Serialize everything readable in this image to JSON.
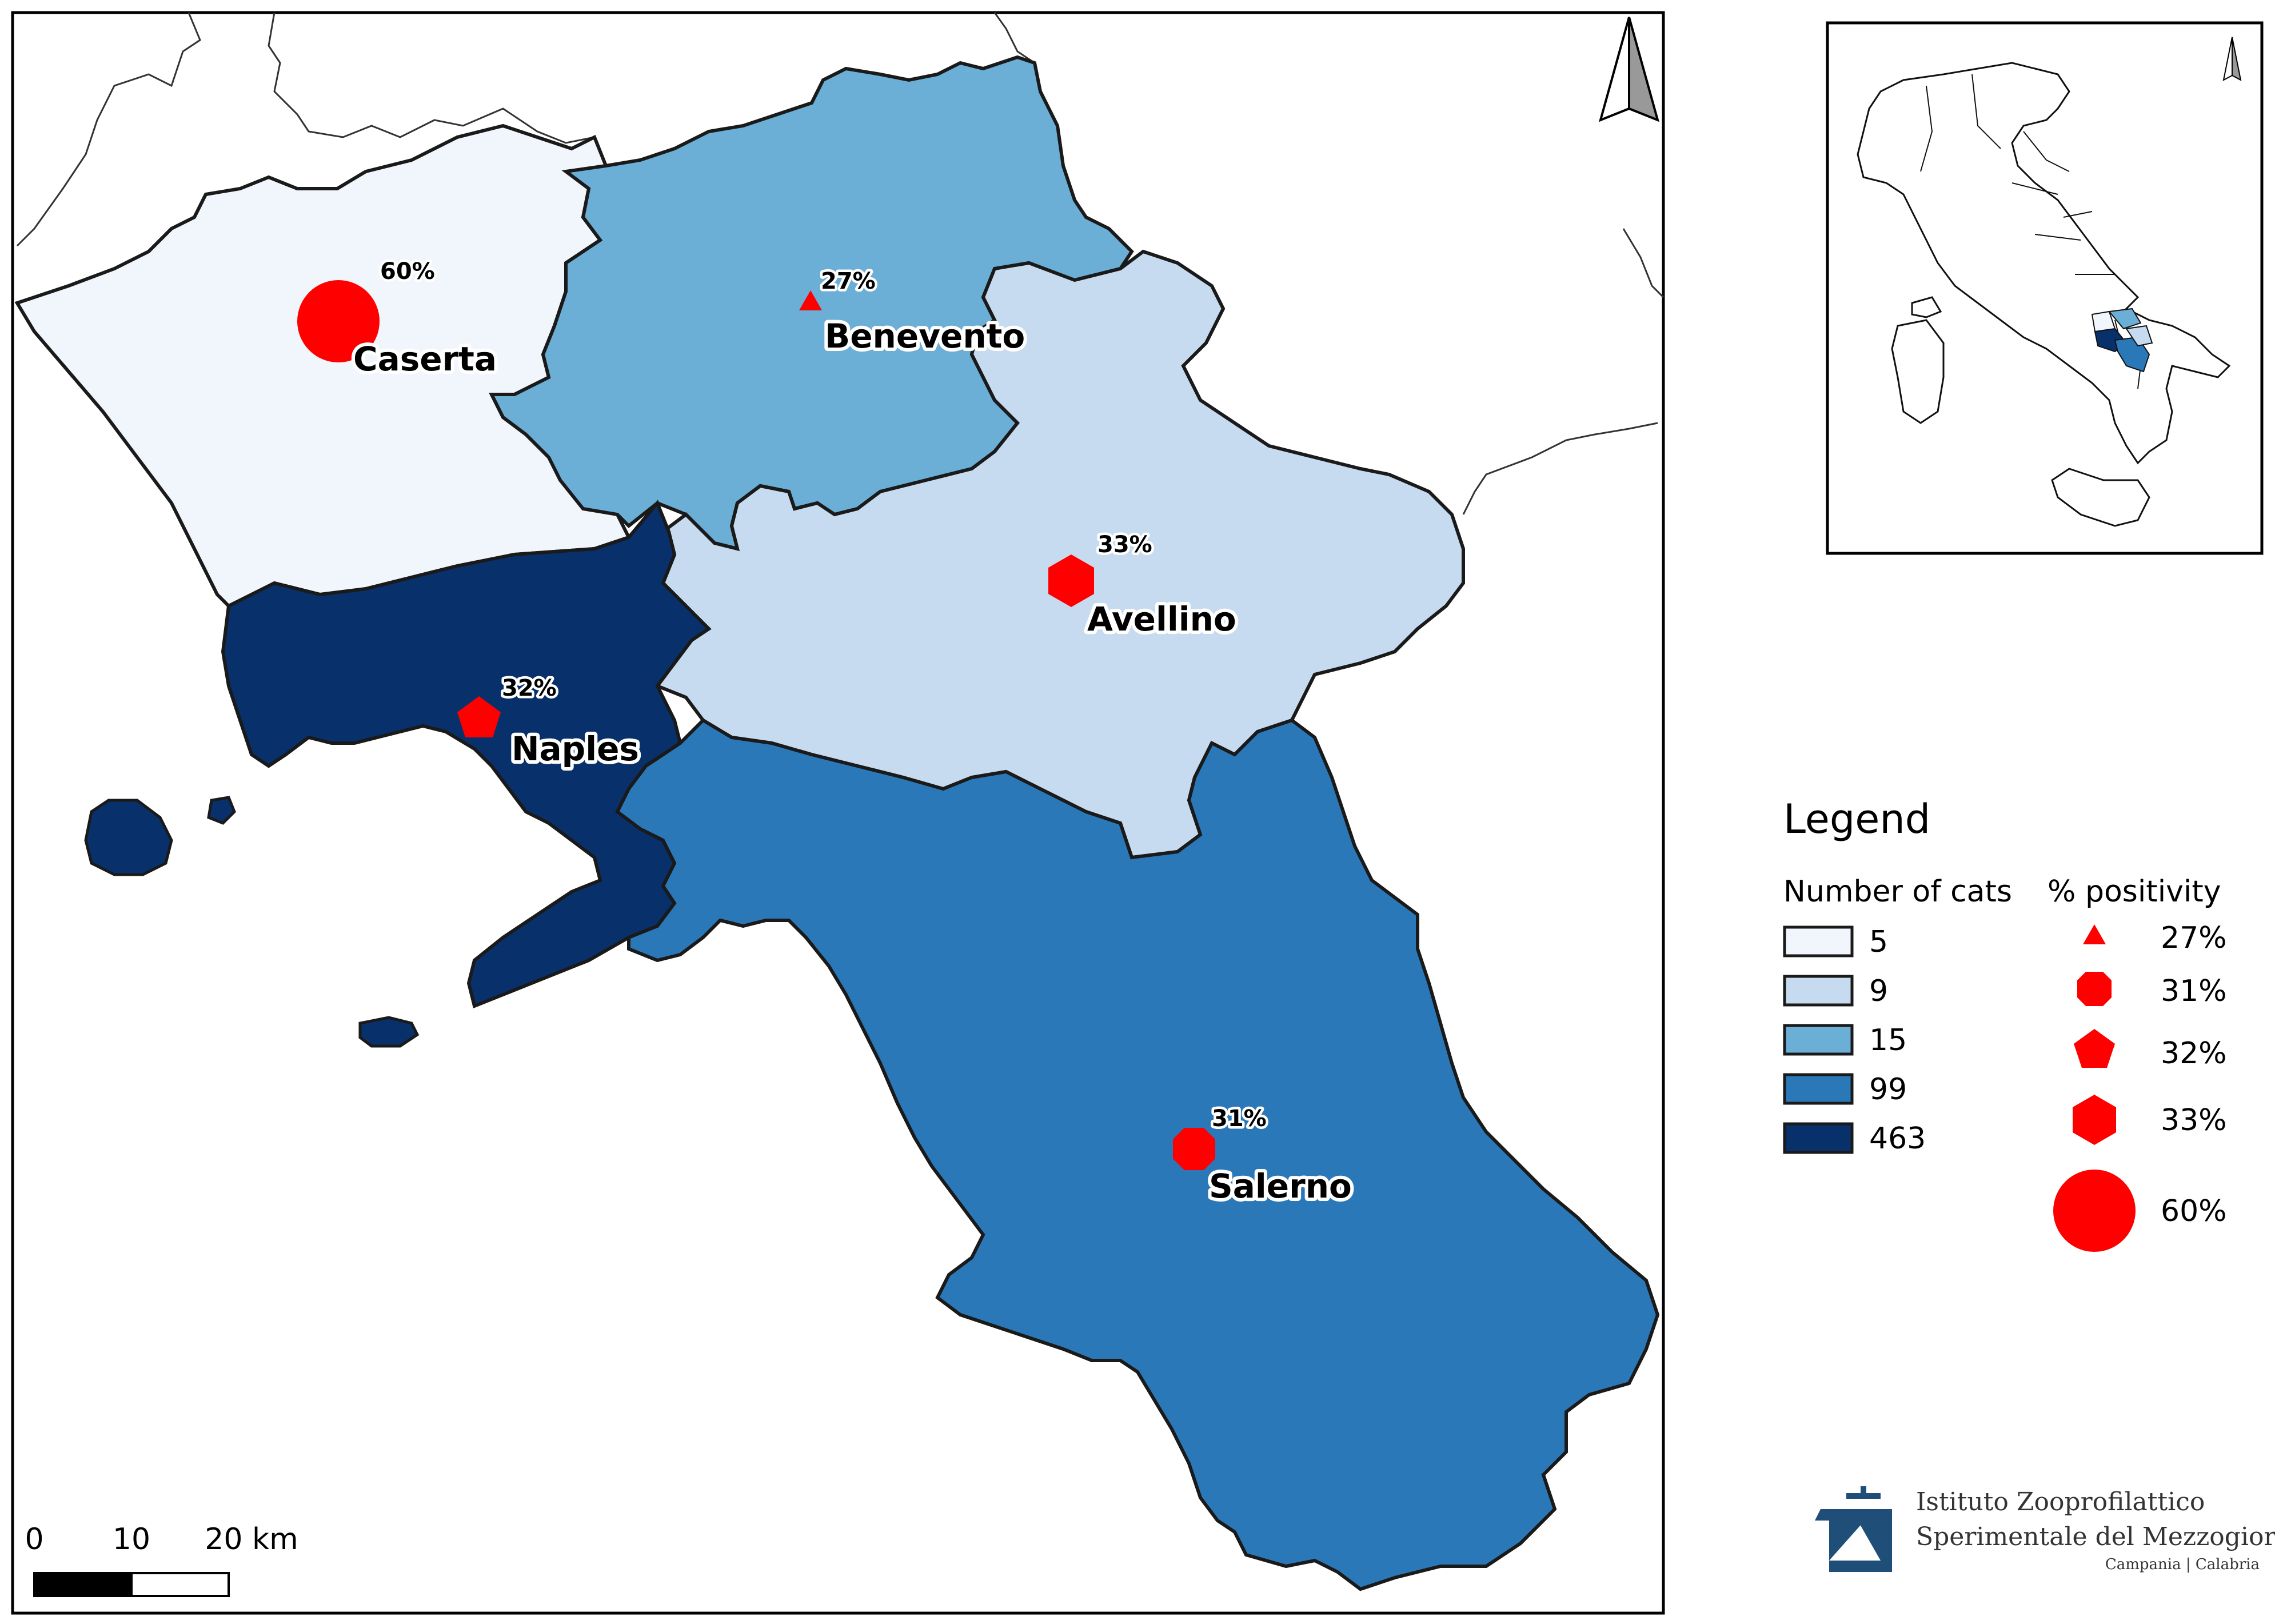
{
  "colors": {
    "bin_5": "#f1f6fd",
    "bin_9": "#c6dbef",
    "bin_15": "#6baed6",
    "bin_99": "#2b78b9",
    "bin_463": "#08306b",
    "marker": "#ff0000",
    "boundary": "#1a1a1a"
  },
  "provinces": [
    {
      "name": "Caserta",
      "cats": "5",
      "positivity": "60%",
      "marker": "circle"
    },
    {
      "name": "Benevento",
      "cats": "15",
      "positivity": "27%",
      "marker": "triangle"
    },
    {
      "name": "Avellino",
      "cats": "9",
      "positivity": "33%",
      "marker": "hexagon"
    },
    {
      "name": "Naples",
      "cats": "463",
      "positivity": "32%",
      "marker": "pentagon"
    },
    {
      "name": "Salerno",
      "cats": "99",
      "positivity": "31%",
      "marker": "octagon"
    }
  ],
  "legend": {
    "title": "Legend",
    "cats_heading": "Number of cats",
    "positivity_heading": "% positivity",
    "cats_bins": [
      "5",
      "9",
      "15",
      "99",
      "463"
    ],
    "positivity_items": [
      {
        "label": "27%",
        "marker": "triangle"
      },
      {
        "label": "31%",
        "marker": "octagon"
      },
      {
        "label": "32%",
        "marker": "pentagon"
      },
      {
        "label": "33%",
        "marker": "hexagon"
      },
      {
        "label": "60%",
        "marker": "circle"
      }
    ]
  },
  "scale_bar": {
    "ticks": [
      "0",
      "10",
      "20 km"
    ]
  },
  "north_arrow": "north-arrow-icon",
  "logo": {
    "line1": "Istituto Zooprofilattico",
    "line2": "Sperimentale del Mezzogiorno",
    "line3": "Campania | Calabria"
  }
}
